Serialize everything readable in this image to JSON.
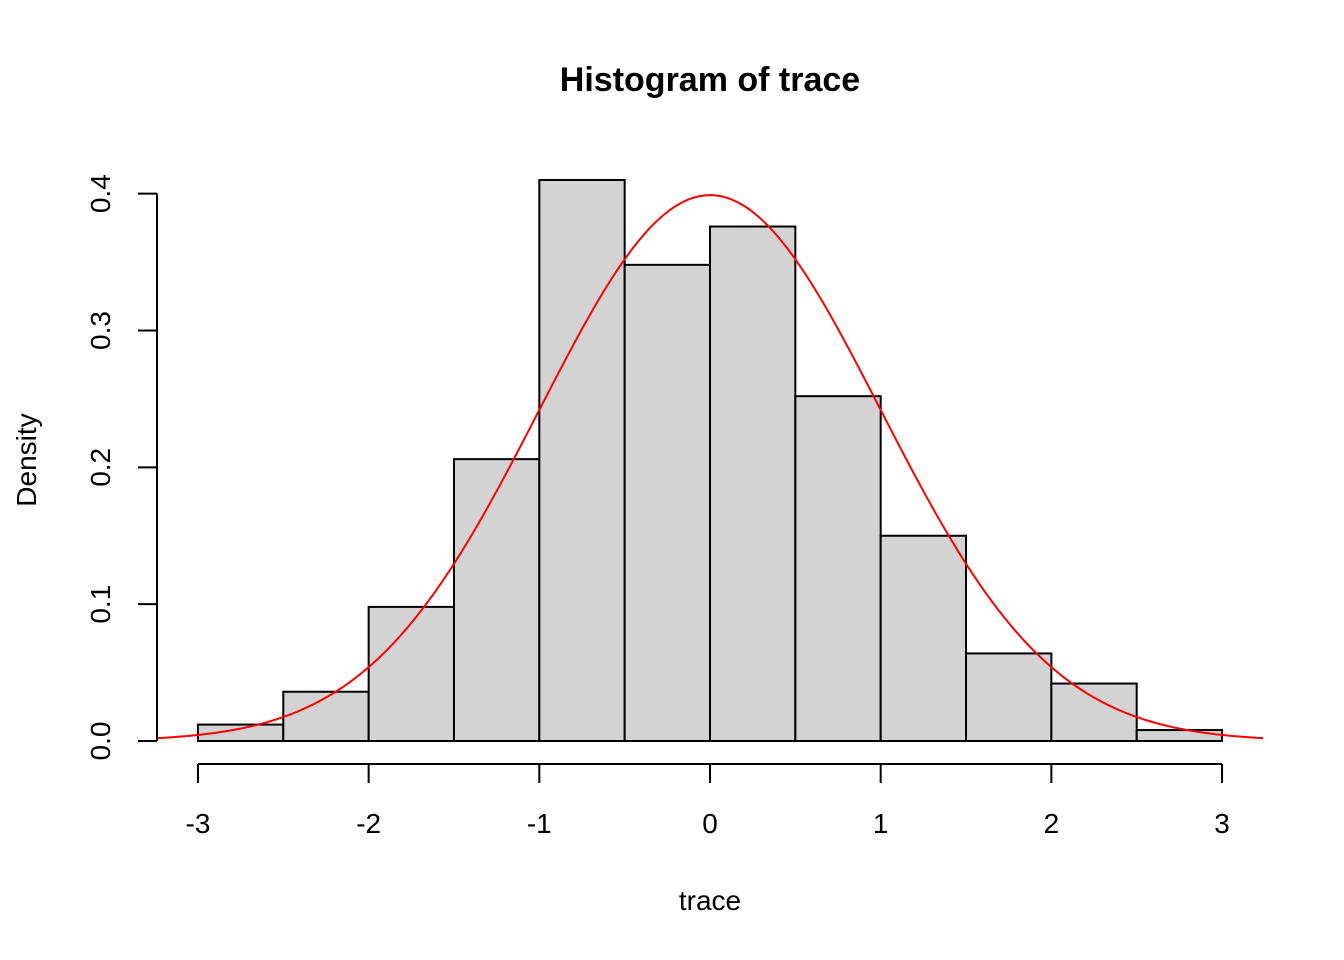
{
  "chart_data": {
    "type": "bar",
    "title": "Histogram of trace",
    "xlabel": "trace",
    "ylabel": "Density",
    "bins": [
      {
        "from": -3.0,
        "to": -2.5,
        "density": 0.012
      },
      {
        "from": -2.5,
        "to": -2.0,
        "density": 0.036
      },
      {
        "from": -2.0,
        "to": -1.5,
        "density": 0.098
      },
      {
        "from": -1.5,
        "to": -1.0,
        "density": 0.206
      },
      {
        "from": -1.0,
        "to": -0.5,
        "density": 0.41
      },
      {
        "from": -0.5,
        "to": 0.0,
        "density": 0.348
      },
      {
        "from": 0.0,
        "to": 0.5,
        "density": 0.376
      },
      {
        "from": 0.5,
        "to": 1.0,
        "density": 0.252
      },
      {
        "from": 1.0,
        "to": 1.5,
        "density": 0.15
      },
      {
        "from": 1.5,
        "to": 2.0,
        "density": 0.064
      },
      {
        "from": 2.0,
        "to": 2.5,
        "density": 0.042
      },
      {
        "from": 2.5,
        "to": 3.0,
        "density": 0.008
      }
    ],
    "curve": {
      "type": "normal-density",
      "mean": 0,
      "sd": 1,
      "x_range": [
        -3.24,
        3.24
      ]
    },
    "xlim": [
      -3.24,
      3.24
    ],
    "ylim": [
      0,
      0.41
    ],
    "x_ticks": [
      -3,
      -2,
      -1,
      0,
      1,
      2,
      3
    ],
    "x_tick_labels": [
      "-3",
      "-2",
      "-1",
      "0",
      "1",
      "2",
      "3"
    ],
    "y_ticks": [
      0.0,
      0.1,
      0.2,
      0.3,
      0.4
    ],
    "y_tick_labels": [
      "0.0",
      "0.1",
      "0.2",
      "0.3",
      "0.4"
    ],
    "bar_color": "#d3d3d3",
    "curve_color": "#ff0000",
    "grid": false,
    "legend": "none"
  }
}
